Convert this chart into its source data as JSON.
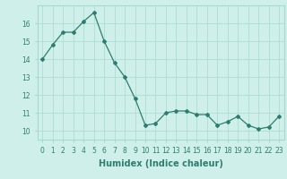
{
  "x": [
    0,
    1,
    2,
    3,
    4,
    5,
    6,
    7,
    8,
    9,
    10,
    11,
    12,
    13,
    14,
    15,
    16,
    17,
    18,
    19,
    20,
    21,
    22,
    23
  ],
  "y": [
    14.0,
    14.8,
    15.5,
    15.5,
    16.1,
    16.6,
    15.0,
    13.8,
    13.0,
    11.8,
    10.3,
    10.4,
    11.0,
    11.1,
    11.1,
    10.9,
    10.9,
    10.3,
    10.5,
    10.8,
    10.3,
    10.1,
    10.2,
    10.8
  ],
  "line_color": "#2e7d6e",
  "marker": "D",
  "marker_size": 2.0,
  "bg_color": "#cff0ea",
  "grid_color": "#a8d8d0",
  "xlabel": "Humidex (Indice chaleur)",
  "ylim": [
    9.5,
    17.0
  ],
  "yticks": [
    10,
    11,
    12,
    13,
    14,
    15,
    16
  ],
  "xticks": [
    0,
    1,
    2,
    3,
    4,
    5,
    6,
    7,
    8,
    9,
    10,
    11,
    12,
    13,
    14,
    15,
    16,
    17,
    18,
    19,
    20,
    21,
    22,
    23
  ],
  "tick_fontsize": 5.5,
  "xlabel_fontsize": 7,
  "line_width": 0.9
}
